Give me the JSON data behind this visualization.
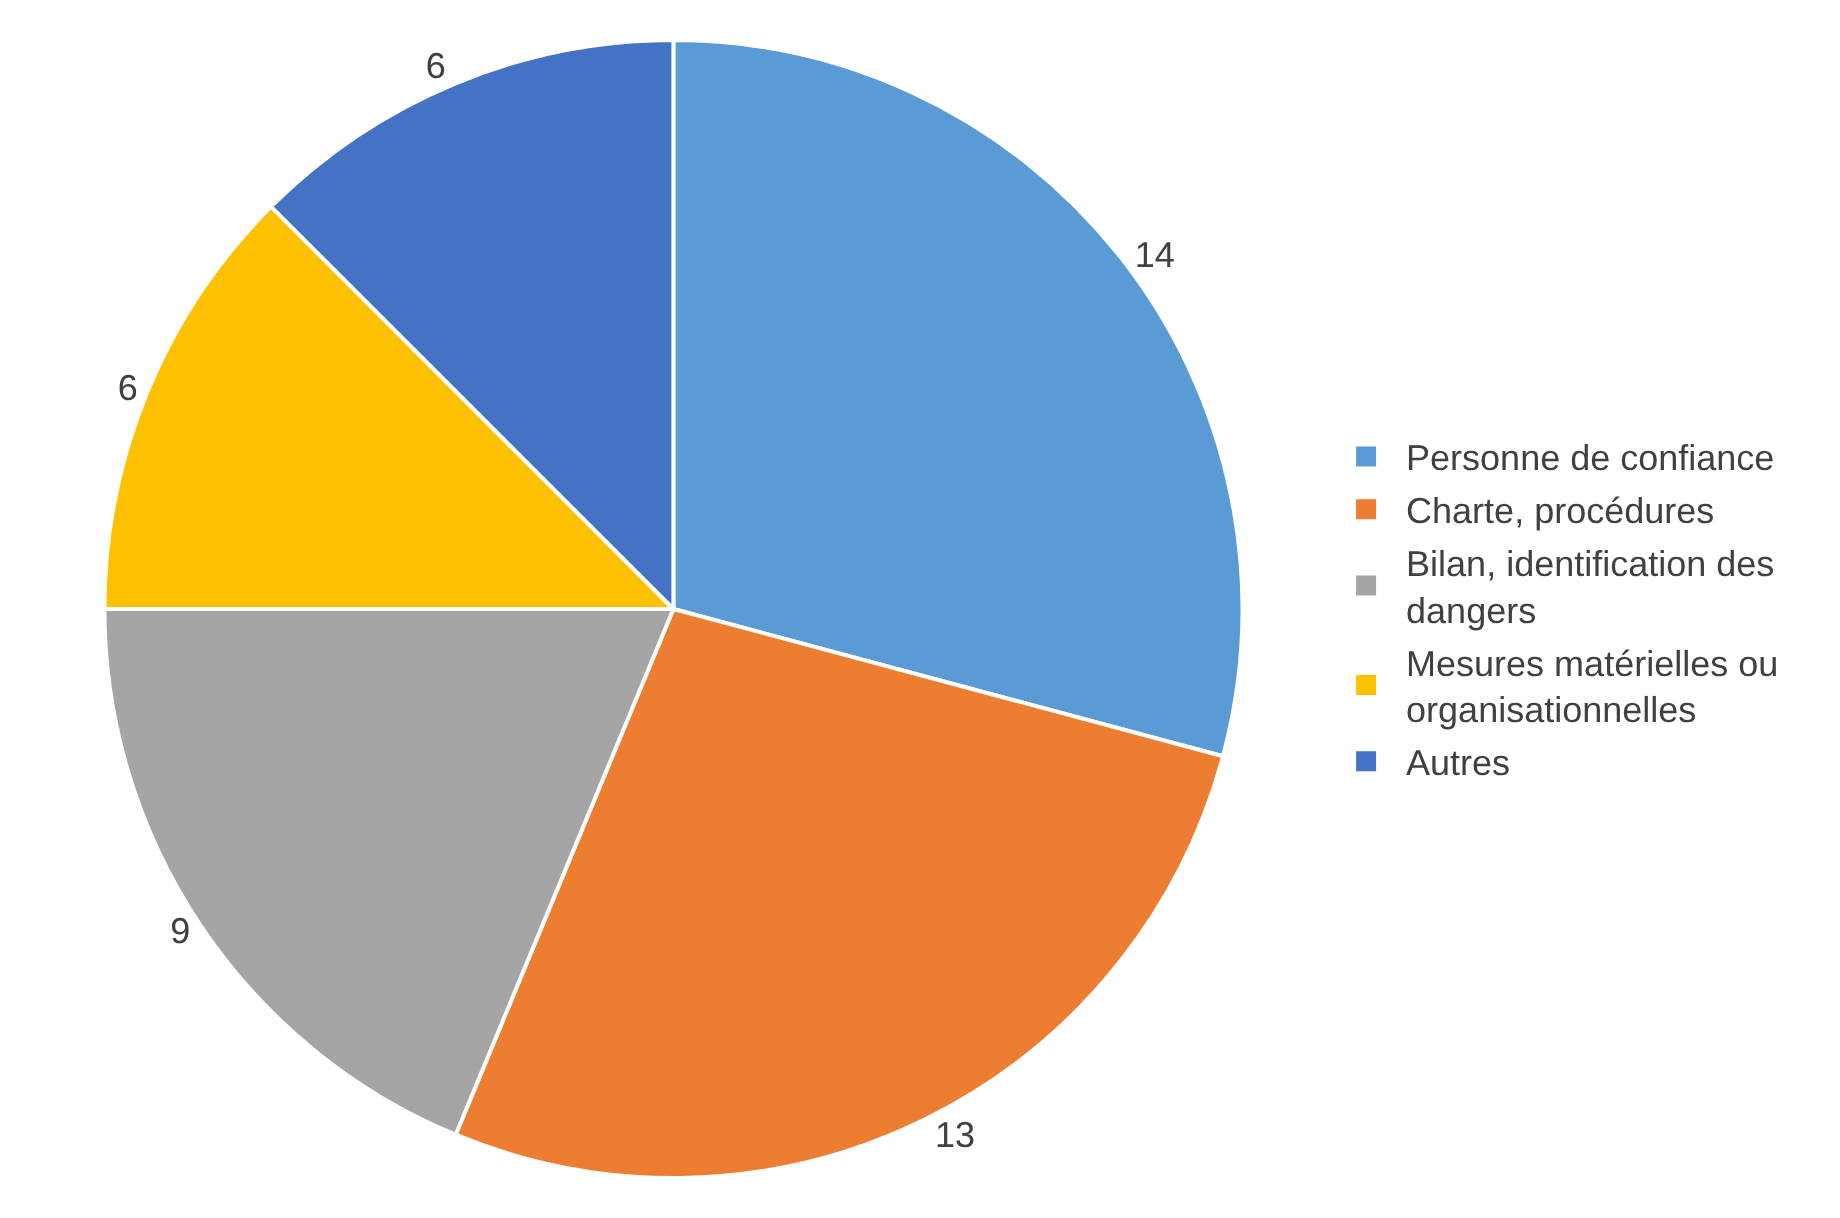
{
  "chart_data": {
    "type": "pie",
    "categories": [
      "Personne de confiance",
      "Charte, procédures",
      "Bilan, identification des dangers",
      "Mesures matérielles ou organisationnelles",
      "Autres"
    ],
    "values": [
      14,
      13,
      9,
      6,
      6
    ],
    "colors": [
      "#5b9bd5",
      "#ed7d31",
      "#a5a5a5",
      "#ffc000",
      "#4472c4"
    ],
    "data_labels": true,
    "legend": "right"
  }
}
